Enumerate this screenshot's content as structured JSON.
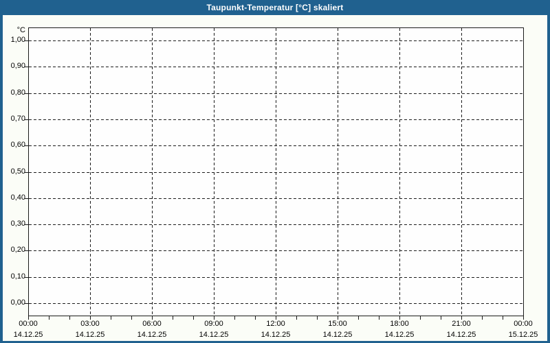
{
  "window": {
    "title_bar": {
      "title": "Taupunkt-Temperatur [°C] skaliert"
    },
    "colors": {
      "title_bar_bg": "#20618f",
      "title_text": "#ffffff",
      "window_border": "#20618f",
      "body_bg": "#fbfdf7",
      "plot_bg": "#fefefe",
      "grid": "#1a1a1a",
      "label_text": "#000000"
    }
  },
  "chart_data": {
    "type": "line",
    "title": "Taupunkt-Temperatur [°C] skaliert",
    "y_unit_label": "°C",
    "ylim": [
      0.0,
      1.0
    ],
    "y_tick_step": 0.1,
    "y_tick_labels": [
      "1,00",
      "0,90",
      "0,80",
      "0,70",
      "0,60",
      "0,50",
      "0,40",
      "0,30",
      "0,20",
      "0,10",
      "0,00"
    ],
    "x_range": {
      "start": "14.12.25 00:00",
      "end": "15.12.25 00:00"
    },
    "x_major_tick_interval_hours": 3,
    "x_minor_tick_interval_hours": 1,
    "x_tick_labels": [
      {
        "time": "00:00",
        "date": "14.12.25"
      },
      {
        "time": "03:00",
        "date": "14.12.25"
      },
      {
        "time": "06:00",
        "date": "14.12.25"
      },
      {
        "time": "09:00",
        "date": "14.12.25"
      },
      {
        "time": "12:00",
        "date": "14.12.25"
      },
      {
        "time": "15:00",
        "date": "14.12.25"
      },
      {
        "time": "18:00",
        "date": "14.12.25"
      },
      {
        "time": "21:00",
        "date": "14.12.25"
      },
      {
        "time": "00:00",
        "date": "15.12.25"
      }
    ],
    "grid": "dashed",
    "legend": "none",
    "series": []
  }
}
